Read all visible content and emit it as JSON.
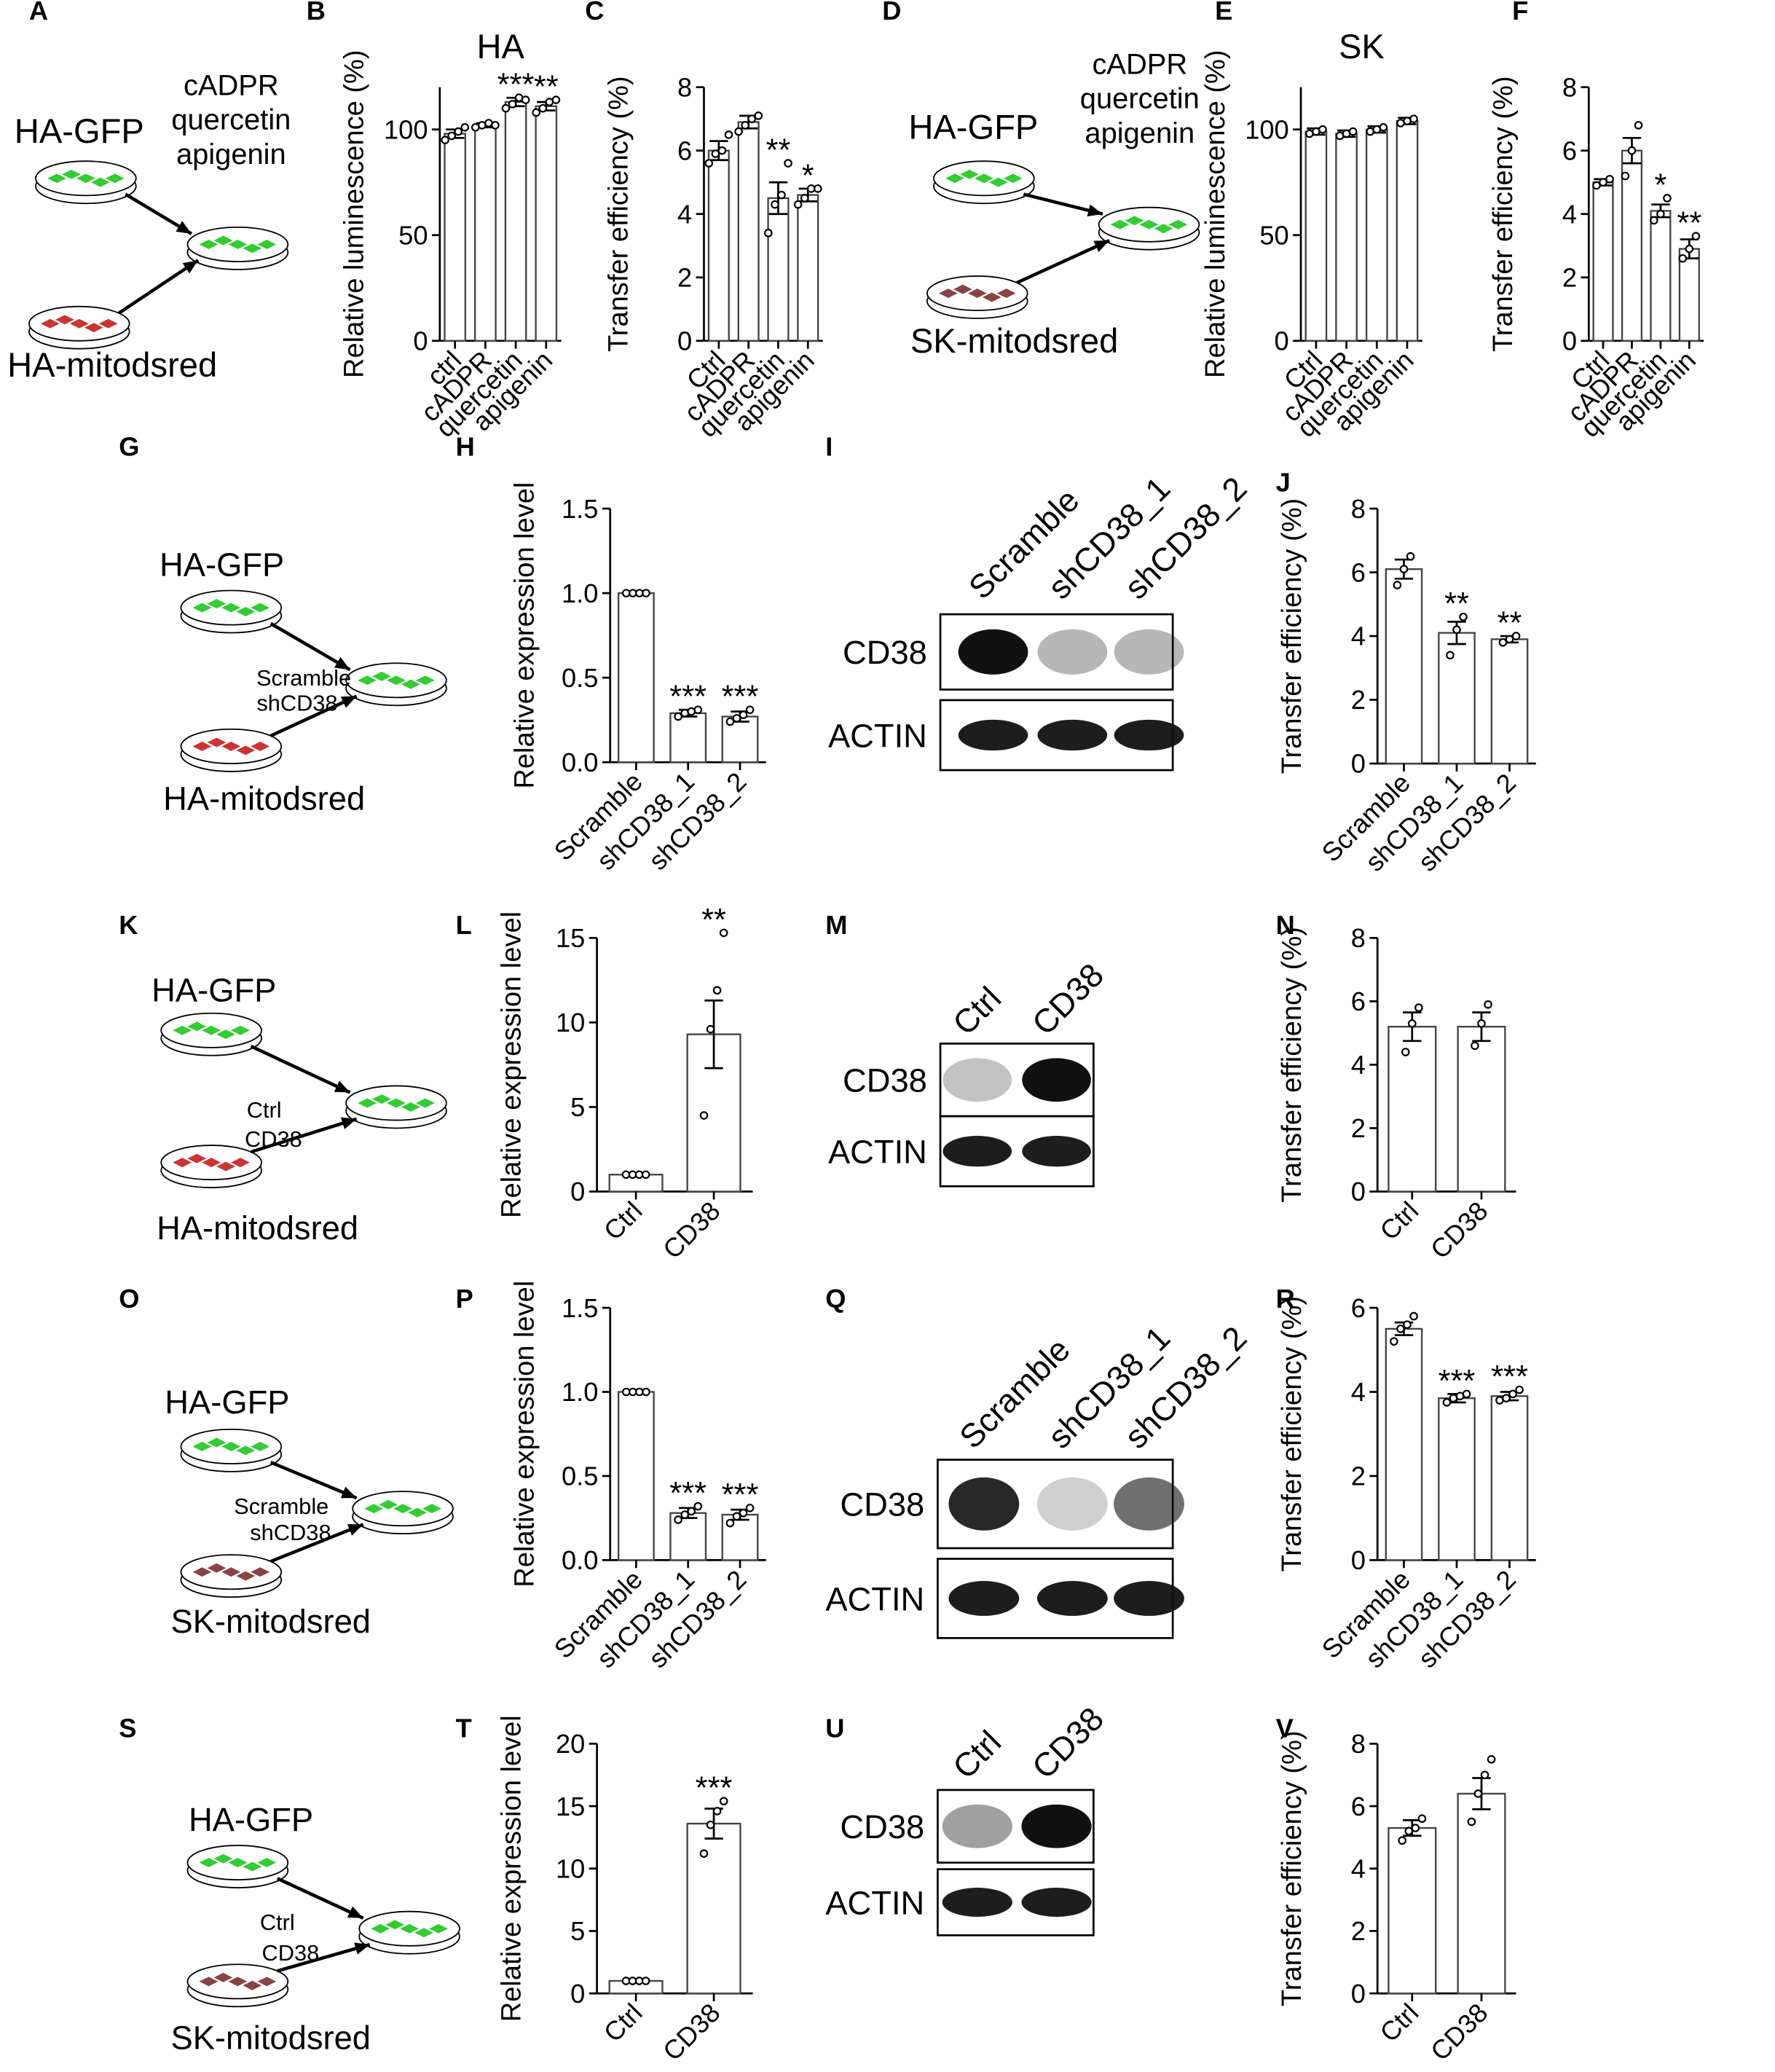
{
  "chart_data": [
    {
      "type": "bar",
      "panel": "B",
      "title": "HA",
      "ylabel": "Relative luminescence (%)",
      "categories": [
        "ctrl",
        "cADPR",
        "quercetin",
        "apigenin"
      ],
      "values": [
        98,
        102,
        113,
        111
      ],
      "errors": [
        2,
        1,
        2,
        2
      ],
      "points": [
        [
          95,
          97,
          99,
          101
        ],
        [
          101,
          102,
          103,
          102
        ],
        [
          110,
          112,
          115,
          114
        ],
        [
          108,
          110,
          113,
          114
        ]
      ],
      "stars": [
        null,
        null,
        "***",
        "**"
      ],
      "ylim": [
        0,
        120
      ],
      "yticks": [
        0,
        50,
        100
      ]
    },
    {
      "type": "bar",
      "panel": "C",
      "ylabel": "Transfer efficiency (%)",
      "categories": [
        "Ctrl",
        "cADPR",
        "quercetin",
        "apigenin"
      ],
      "values": [
        6.0,
        6.9,
        4.5,
        4.6
      ],
      "errors": [
        0.3,
        0.2,
        0.5,
        0.2
      ],
      "points": [
        [
          5.6,
          5.9,
          6.0,
          6.5
        ],
        [
          6.6,
          6.8,
          7.0,
          7.1
        ],
        [
          3.4,
          4.3,
          4.6,
          5.6
        ],
        [
          4.3,
          4.5,
          4.8,
          4.8
        ]
      ],
      "stars": [
        null,
        null,
        "**",
        "*"
      ],
      "ylim": [
        0,
        8
      ],
      "yticks": [
        0,
        2,
        4,
        6,
        8
      ]
    },
    {
      "type": "bar",
      "panel": "E",
      "title": "SK",
      "ylabel": "Relative luminescence (%)",
      "categories": [
        "Ctrl",
        "cADPR",
        "quercetin",
        "apigenin"
      ],
      "values": [
        99,
        98,
        100,
        104
      ],
      "errors": [
        1.5,
        1.5,
        1.5,
        1.5
      ],
      "points": [
        [
          98,
          99,
          100
        ],
        [
          97,
          98,
          99
        ],
        [
          99,
          100,
          101
        ],
        [
          103,
          104,
          105
        ]
      ],
      "stars": [
        null,
        null,
        null,
        null
      ],
      "ylim": [
        0,
        120
      ],
      "yticks": [
        0,
        50,
        100
      ]
    },
    {
      "type": "bar",
      "panel": "F",
      "ylabel": "Transfer efficiency (%)",
      "categories": [
        "Ctrl",
        "cADPR",
        "quercetin",
        "apigenin"
      ],
      "values": [
        5.0,
        6.0,
        4.1,
        2.9
      ],
      "errors": [
        0.1,
        0.4,
        0.2,
        0.3
      ],
      "points": [
        [
          4.9,
          5.0,
          5.1
        ],
        [
          5.2,
          6.0,
          6.8
        ],
        [
          3.8,
          4.0,
          4.5
        ],
        [
          2.6,
          2.9,
          3.3
        ]
      ],
      "stars": [
        null,
        null,
        "*",
        "**"
      ],
      "ylim": [
        0,
        8
      ],
      "yticks": [
        0,
        2,
        4,
        6,
        8
      ]
    },
    {
      "type": "bar",
      "panel": "H",
      "ylabel": "Relative expression level",
      "categories": [
        "Scramble",
        "shCD38_1",
        "shCD38_2"
      ],
      "values": [
        1.0,
        0.29,
        0.27
      ],
      "errors": [
        0,
        0.02,
        0.03
      ],
      "points": [
        [
          1,
          1,
          1,
          1
        ],
        [
          0.27,
          0.29,
          0.3,
          0.31
        ],
        [
          0.24,
          0.26,
          0.28,
          0.31
        ]
      ],
      "stars": [
        null,
        "***",
        "***"
      ],
      "ylim": [
        0,
        1.5
      ],
      "yticks": [
        {
          "value": 0,
          "label": "0.0"
        },
        0.5,
        {
          "value": 1,
          "label": "1.0"
        },
        1.5
      ]
    },
    {
      "type": "bar",
      "panel": "J",
      "ylabel": "Transfer efficiency (%)",
      "categories": [
        "Scramble",
        "shCD38_1",
        "shCD38_2"
      ],
      "values": [
        6.1,
        4.1,
        3.9
      ],
      "errors": [
        0.3,
        0.35,
        0.1
      ],
      "points": [
        [
          5.6,
          6.1,
          6.5
        ],
        [
          3.4,
          4.2,
          4.6
        ],
        [
          3.8,
          3.9,
          4.0
        ]
      ],
      "stars": [
        null,
        "**",
        "**"
      ],
      "ylim": [
        0,
        8
      ],
      "yticks": [
        0,
        2,
        4,
        6,
        8
      ]
    },
    {
      "type": "bar",
      "panel": "L",
      "ylabel": "Relative expression level",
      "categories": [
        "Ctrl",
        "CD38"
      ],
      "values": [
        1,
        9.3
      ],
      "errors": [
        0,
        2
      ],
      "points": [
        [
          1,
          1,
          1,
          1
        ],
        [
          4.5,
          9.6,
          11.9,
          15.3
        ]
      ],
      "stars": [
        null,
        "**"
      ],
      "ylim": [
        0,
        15
      ],
      "yticks": [
        0,
        5,
        10,
        15
      ]
    },
    {
      "type": "bar",
      "panel": "N",
      "ylabel": "Transfer efficiency (%)",
      "categories": [
        "Ctrl",
        "CD38"
      ],
      "values": [
        5.2,
        5.2
      ],
      "errors": [
        0.45,
        0.45
      ],
      "points": [
        [
          4.4,
          5.3,
          5.8
        ],
        [
          4.6,
          5.3,
          5.9
        ]
      ],
      "stars": [
        null,
        null
      ],
      "ylim": [
        0,
        8
      ],
      "yticks": [
        0,
        2,
        4,
        6,
        8
      ]
    },
    {
      "type": "bar",
      "panel": "P",
      "ylabel": "Relative expression level",
      "categories": [
        "Scramble",
        "shCD38_1",
        "shCD38_2"
      ],
      "values": [
        1.0,
        0.28,
        0.27
      ],
      "errors": [
        0,
        0.03,
        0.03
      ],
      "points": [
        [
          1,
          1,
          1,
          1
        ],
        [
          0.24,
          0.27,
          0.29,
          0.32
        ],
        [
          0.22,
          0.26,
          0.28,
          0.31
        ]
      ],
      "stars": [
        null,
        "***",
        "***"
      ],
      "ylim": [
        0,
        1.5
      ],
      "yticks": [
        {
          "value": 0,
          "label": "0.0"
        },
        0.5,
        {
          "value": 1,
          "label": "1.0"
        },
        1.5
      ]
    },
    {
      "type": "bar",
      "panel": "R",
      "ylabel": "Transfer efficiency (%)",
      "categories": [
        "Scramble",
        "shCD38_1",
        "shCD38_2"
      ],
      "values": [
        5.5,
        3.85,
        3.9
      ],
      "errors": [
        0.15,
        0.1,
        0.1
      ],
      "points": [
        [
          5.2,
          5.5,
          5.6,
          5.8
        ],
        [
          3.75,
          3.85,
          3.9,
          3.95
        ],
        [
          3.8,
          3.85,
          3.95,
          4.05
        ]
      ],
      "stars": [
        null,
        "***",
        "***"
      ],
      "ylim": [
        0,
        6
      ],
      "yticks": [
        0,
        2,
        4,
        6
      ]
    },
    {
      "type": "bar",
      "panel": "T",
      "ylabel": "Relative expression level",
      "categories": [
        "Ctrl",
        "CD38"
      ],
      "values": [
        1,
        13.6
      ],
      "errors": [
        0,
        1.2
      ],
      "points": [
        [
          1,
          1,
          1,
          1
        ],
        [
          11.2,
          13.5,
          14.6,
          15.4
        ]
      ],
      "stars": [
        null,
        "***"
      ],
      "ylim": [
        0,
        20
      ],
      "yticks": [
        0,
        5,
        10,
        15,
        20
      ]
    },
    {
      "type": "bar",
      "panel": "V",
      "ylabel": "Transfer efficiency (%)",
      "categories": [
        "Ctrl",
        "CD38"
      ],
      "values": [
        5.3,
        6.4
      ],
      "errors": [
        0.25,
        0.5
      ],
      "points": [
        [
          4.9,
          5.2,
          5.3,
          5.6
        ],
        [
          5.5,
          6.4,
          7.0,
          7.5
        ]
      ],
      "stars": [
        null,
        null
      ],
      "ylim": [
        0,
        8
      ],
      "yticks": [
        0,
        2,
        4,
        6,
        8
      ]
    }
  ],
  "diagrams": [
    {
      "panel": "A",
      "labels": [
        "HA-GFP",
        "cADPR",
        "quercetin",
        "apigenin",
        "HA-mitodsred"
      ]
    },
    {
      "panel": "D",
      "labels": [
        "HA-GFP",
        "cADPR",
        "quercetin",
        "apigenin",
        "SK-mitodsred"
      ]
    },
    {
      "panel": "G",
      "labels": [
        "HA-GFP",
        "Scramble",
        "shCD38",
        "HA-mitodsred"
      ]
    },
    {
      "panel": "K",
      "labels": [
        "HA-GFP",
        "Ctrl",
        "CD38",
        "HA-mitodsred"
      ]
    },
    {
      "panel": "O",
      "labels": [
        "HA-GFP",
        "Scramble",
        "shCD38",
        "SK-mitodsred"
      ]
    },
    {
      "panel": "S",
      "labels": [
        "HA-GFP",
        "Ctrl",
        "CD38",
        "SK-mitodsred"
      ]
    }
  ],
  "blots": [
    {
      "panel": "I",
      "lanes": [
        "Scramble",
        "shCD38_1",
        "shCD38_2"
      ],
      "rows": [
        "CD38",
        "ACTIN"
      ]
    },
    {
      "panel": "M",
      "lanes": [
        "Ctrl",
        "CD38"
      ],
      "rows": [
        "CD38",
        "ACTIN"
      ]
    },
    {
      "panel": "Q",
      "lanes": [
        "Scramble",
        "shCD38_1",
        "shCD38_2"
      ],
      "rows": [
        "CD38",
        "ACTIN"
      ]
    },
    {
      "panel": "U",
      "lanes": [
        "Ctrl",
        "CD38"
      ],
      "rows": [
        "CD38",
        "ACTIN"
      ]
    }
  ]
}
